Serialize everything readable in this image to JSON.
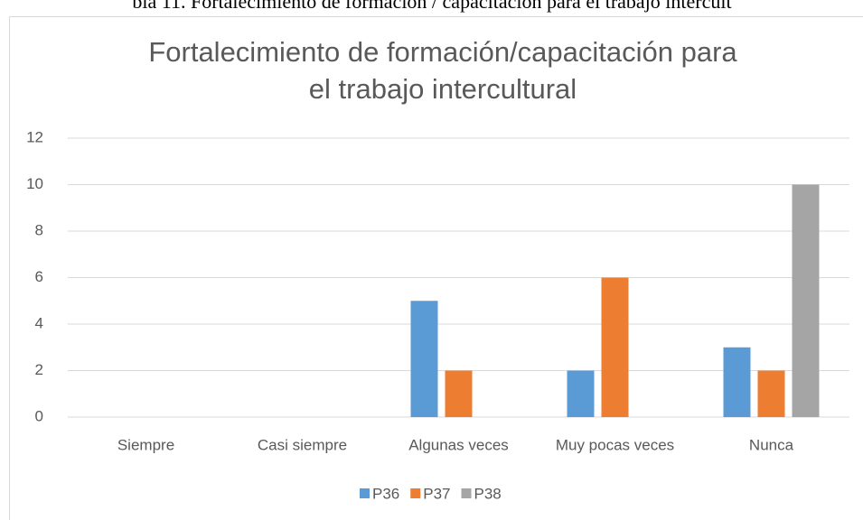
{
  "caption": "bla 11. Fortalecimiento de formación / capacitación para el trabajo intercult",
  "chart_data": {
    "type": "bar",
    "title": [
      "Fortalecimiento de formación/capacitación para",
      "el trabajo intercultural"
    ],
    "categories": [
      "Siempre",
      "Casi siempre",
      "Algunas veces",
      "Muy pocas veces",
      "Nunca"
    ],
    "series": [
      {
        "name": "P36",
        "color": "#5b9bd5",
        "values": [
          0,
          0,
          5,
          2,
          3
        ]
      },
      {
        "name": "P37",
        "color": "#ed7d31",
        "values": [
          0,
          0,
          2,
          6,
          2
        ]
      },
      {
        "name": "P38",
        "color": "#a5a5a5",
        "values": [
          0,
          0,
          0,
          0,
          10
        ]
      }
    ],
    "ylim": [
      0,
      12
    ],
    "yticks": [
      0,
      2,
      4,
      6,
      8,
      10,
      12
    ],
    "grid": true,
    "legend": "bottom"
  }
}
